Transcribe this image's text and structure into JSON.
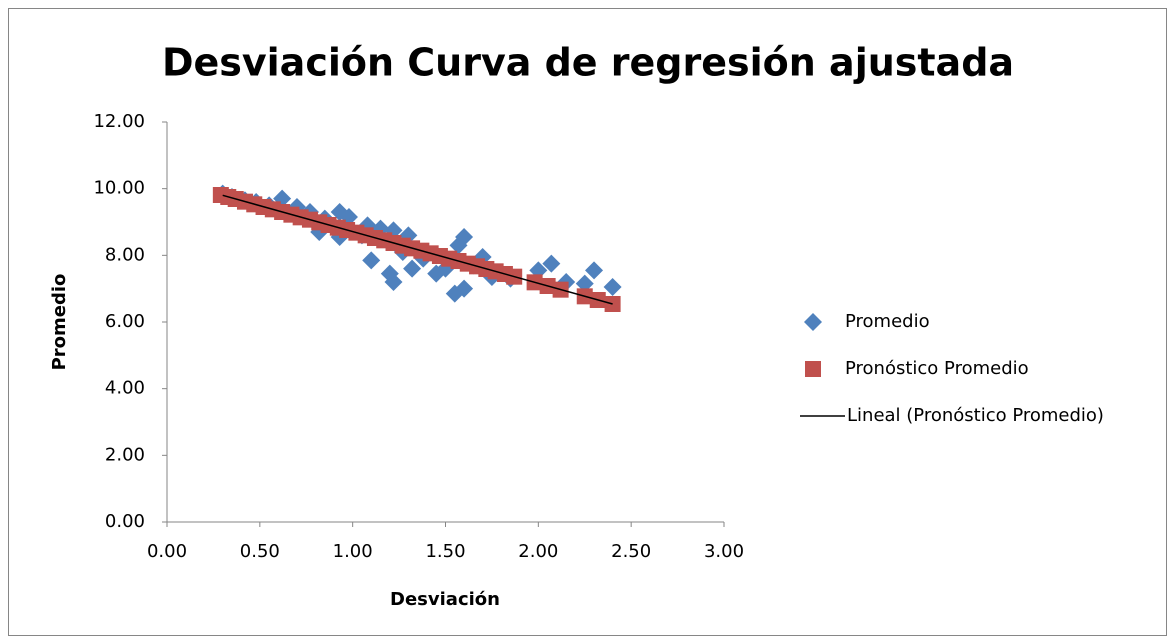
{
  "chart_data": {
    "type": "scatter",
    "title": "Desviación Curva de regresión ajustada",
    "x_label": "Desviación",
    "y_label": "Promedio",
    "xlim": [
      0,
      3
    ],
    "ylim": [
      0,
      12
    ],
    "xticks": [
      {
        "value": 0,
        "label": "0.00"
      },
      {
        "value": 0.5,
        "label": "0.50"
      },
      {
        "value": 1,
        "label": "1.00"
      },
      {
        "value": 1.5,
        "label": "1.50"
      },
      {
        "value": 2,
        "label": "2.00"
      },
      {
        "value": 2.5,
        "label": "2.50"
      },
      {
        "value": 3,
        "label": "3.00"
      }
    ],
    "yticks": [
      {
        "value": 0,
        "label": "0.00"
      },
      {
        "value": 2,
        "label": "2.00"
      },
      {
        "value": 4,
        "label": "4.00"
      },
      {
        "value": 6,
        "label": "6.00"
      },
      {
        "value": 8,
        "label": "8.00"
      },
      {
        "value": 10,
        "label": "10.00"
      },
      {
        "value": 12,
        "label": "12.00"
      }
    ],
    "grid": false,
    "legend": "right",
    "series": [
      {
        "name": "Promedio",
        "color": "#4f81bd",
        "marker": "diamond",
        "x": [
          0.3,
          0.35,
          0.42,
          0.48,
          0.55,
          0.62,
          0.7,
          0.77,
          0.82,
          0.85,
          0.93,
          0.93,
          0.98,
          1.05,
          1.08,
          1.1,
          1.15,
          1.2,
          1.22,
          1.22,
          1.27,
          1.3,
          1.32,
          1.38,
          1.45,
          1.5,
          1.55,
          1.57,
          1.6,
          1.6,
          1.65,
          1.7,
          1.75,
          1.85,
          2.0,
          2.07,
          2.15,
          2.25,
          2.3,
          2.4
        ],
        "values": [
          9.85,
          9.75,
          9.65,
          9.6,
          9.5,
          9.7,
          9.45,
          9.3,
          8.7,
          9.1,
          9.3,
          8.55,
          9.15,
          8.6,
          8.9,
          7.85,
          8.8,
          7.45,
          7.2,
          8.75,
          8.1,
          8.6,
          7.6,
          7.9,
          7.45,
          7.6,
          6.85,
          8.3,
          8.55,
          7.0,
          7.7,
          7.95,
          7.35,
          7.3,
          7.55,
          7.75,
          7.2,
          7.15,
          7.55,
          7.05
        ]
      },
      {
        "name": "Pronóstico Promedio",
        "color": "#c0504d",
        "marker": "square",
        "x": [
          0.29,
          0.33,
          0.37,
          0.42,
          0.47,
          0.52,
          0.57,
          0.62,
          0.67,
          0.72,
          0.77,
          0.82,
          0.87,
          0.92,
          0.97,
          1.02,
          1.07,
          1.12,
          1.17,
          1.22,
          1.27,
          1.32,
          1.37,
          1.42,
          1.47,
          1.52,
          1.57,
          1.62,
          1.67,
          1.72,
          1.77,
          1.82,
          1.87,
          1.98,
          2.05,
          2.12,
          2.25,
          2.32,
          2.4
        ],
        "values": [
          9.81,
          9.75,
          9.69,
          9.61,
          9.53,
          9.45,
          9.38,
          9.3,
          9.22,
          9.14,
          9.07,
          8.99,
          8.91,
          8.83,
          8.76,
          8.68,
          8.6,
          8.52,
          8.45,
          8.37,
          8.29,
          8.21,
          8.14,
          8.06,
          7.98,
          7.9,
          7.83,
          7.75,
          7.67,
          7.59,
          7.52,
          7.44,
          7.36,
          7.19,
          7.08,
          6.97,
          6.77,
          6.66,
          6.54
        ]
      },
      {
        "name": "Lineal (Pronóstico Promedio)",
        "color": "#000000",
        "marker": "line",
        "x": [
          0.3,
          2.4
        ],
        "values": [
          9.8,
          6.54
        ]
      }
    ]
  }
}
